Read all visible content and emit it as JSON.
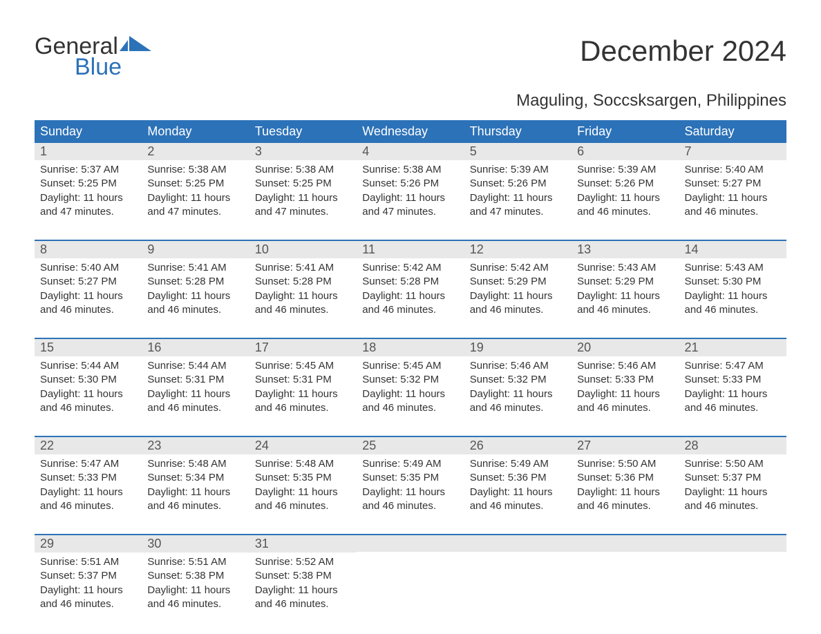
{
  "logo": {
    "text_top": "General",
    "text_bottom": "Blue",
    "icon_color": "#2c72b8"
  },
  "title": "December 2024",
  "subtitle": "Maguling, Soccsksargen, Philippines",
  "colors": {
    "header_bg": "#2c72b8",
    "header_text": "#ffffff",
    "daynum_bg": "#e8e8e8",
    "daynum_text": "#555555",
    "body_text": "#333333",
    "week_border": "#2c72b8",
    "page_bg": "#ffffff"
  },
  "typography": {
    "title_fontsize": 42,
    "subtitle_fontsize": 24,
    "dayheader_fontsize": 18,
    "daynum_fontsize": 18,
    "body_fontsize": 15,
    "font_family": "Arial"
  },
  "day_headers": [
    "Sunday",
    "Monday",
    "Tuesday",
    "Wednesday",
    "Thursday",
    "Friday",
    "Saturday"
  ],
  "weeks": [
    [
      {
        "n": "1",
        "sr": "Sunrise: 5:37 AM",
        "ss": "Sunset: 5:25 PM",
        "d1": "Daylight: 11 hours",
        "d2": "and 47 minutes."
      },
      {
        "n": "2",
        "sr": "Sunrise: 5:38 AM",
        "ss": "Sunset: 5:25 PM",
        "d1": "Daylight: 11 hours",
        "d2": "and 47 minutes."
      },
      {
        "n": "3",
        "sr": "Sunrise: 5:38 AM",
        "ss": "Sunset: 5:25 PM",
        "d1": "Daylight: 11 hours",
        "d2": "and 47 minutes."
      },
      {
        "n": "4",
        "sr": "Sunrise: 5:38 AM",
        "ss": "Sunset: 5:26 PM",
        "d1": "Daylight: 11 hours",
        "d2": "and 47 minutes."
      },
      {
        "n": "5",
        "sr": "Sunrise: 5:39 AM",
        "ss": "Sunset: 5:26 PM",
        "d1": "Daylight: 11 hours",
        "d2": "and 47 minutes."
      },
      {
        "n": "6",
        "sr": "Sunrise: 5:39 AM",
        "ss": "Sunset: 5:26 PM",
        "d1": "Daylight: 11 hours",
        "d2": "and 46 minutes."
      },
      {
        "n": "7",
        "sr": "Sunrise: 5:40 AM",
        "ss": "Sunset: 5:27 PM",
        "d1": "Daylight: 11 hours",
        "d2": "and 46 minutes."
      }
    ],
    [
      {
        "n": "8",
        "sr": "Sunrise: 5:40 AM",
        "ss": "Sunset: 5:27 PM",
        "d1": "Daylight: 11 hours",
        "d2": "and 46 minutes."
      },
      {
        "n": "9",
        "sr": "Sunrise: 5:41 AM",
        "ss": "Sunset: 5:28 PM",
        "d1": "Daylight: 11 hours",
        "d2": "and 46 minutes."
      },
      {
        "n": "10",
        "sr": "Sunrise: 5:41 AM",
        "ss": "Sunset: 5:28 PM",
        "d1": "Daylight: 11 hours",
        "d2": "and 46 minutes."
      },
      {
        "n": "11",
        "sr": "Sunrise: 5:42 AM",
        "ss": "Sunset: 5:28 PM",
        "d1": "Daylight: 11 hours",
        "d2": "and 46 minutes."
      },
      {
        "n": "12",
        "sr": "Sunrise: 5:42 AM",
        "ss": "Sunset: 5:29 PM",
        "d1": "Daylight: 11 hours",
        "d2": "and 46 minutes."
      },
      {
        "n": "13",
        "sr": "Sunrise: 5:43 AM",
        "ss": "Sunset: 5:29 PM",
        "d1": "Daylight: 11 hours",
        "d2": "and 46 minutes."
      },
      {
        "n": "14",
        "sr": "Sunrise: 5:43 AM",
        "ss": "Sunset: 5:30 PM",
        "d1": "Daylight: 11 hours",
        "d2": "and 46 minutes."
      }
    ],
    [
      {
        "n": "15",
        "sr": "Sunrise: 5:44 AM",
        "ss": "Sunset: 5:30 PM",
        "d1": "Daylight: 11 hours",
        "d2": "and 46 minutes."
      },
      {
        "n": "16",
        "sr": "Sunrise: 5:44 AM",
        "ss": "Sunset: 5:31 PM",
        "d1": "Daylight: 11 hours",
        "d2": "and 46 minutes."
      },
      {
        "n": "17",
        "sr": "Sunrise: 5:45 AM",
        "ss": "Sunset: 5:31 PM",
        "d1": "Daylight: 11 hours",
        "d2": "and 46 minutes."
      },
      {
        "n": "18",
        "sr": "Sunrise: 5:45 AM",
        "ss": "Sunset: 5:32 PM",
        "d1": "Daylight: 11 hours",
        "d2": "and 46 minutes."
      },
      {
        "n": "19",
        "sr": "Sunrise: 5:46 AM",
        "ss": "Sunset: 5:32 PM",
        "d1": "Daylight: 11 hours",
        "d2": "and 46 minutes."
      },
      {
        "n": "20",
        "sr": "Sunrise: 5:46 AM",
        "ss": "Sunset: 5:33 PM",
        "d1": "Daylight: 11 hours",
        "d2": "and 46 minutes."
      },
      {
        "n": "21",
        "sr": "Sunrise: 5:47 AM",
        "ss": "Sunset: 5:33 PM",
        "d1": "Daylight: 11 hours",
        "d2": "and 46 minutes."
      }
    ],
    [
      {
        "n": "22",
        "sr": "Sunrise: 5:47 AM",
        "ss": "Sunset: 5:33 PM",
        "d1": "Daylight: 11 hours",
        "d2": "and 46 minutes."
      },
      {
        "n": "23",
        "sr": "Sunrise: 5:48 AM",
        "ss": "Sunset: 5:34 PM",
        "d1": "Daylight: 11 hours",
        "d2": "and 46 minutes."
      },
      {
        "n": "24",
        "sr": "Sunrise: 5:48 AM",
        "ss": "Sunset: 5:35 PM",
        "d1": "Daylight: 11 hours",
        "d2": "and 46 minutes."
      },
      {
        "n": "25",
        "sr": "Sunrise: 5:49 AM",
        "ss": "Sunset: 5:35 PM",
        "d1": "Daylight: 11 hours",
        "d2": "and 46 minutes."
      },
      {
        "n": "26",
        "sr": "Sunrise: 5:49 AM",
        "ss": "Sunset: 5:36 PM",
        "d1": "Daylight: 11 hours",
        "d2": "and 46 minutes."
      },
      {
        "n": "27",
        "sr": "Sunrise: 5:50 AM",
        "ss": "Sunset: 5:36 PM",
        "d1": "Daylight: 11 hours",
        "d2": "and 46 minutes."
      },
      {
        "n": "28",
        "sr": "Sunrise: 5:50 AM",
        "ss": "Sunset: 5:37 PM",
        "d1": "Daylight: 11 hours",
        "d2": "and 46 minutes."
      }
    ],
    [
      {
        "n": "29",
        "sr": "Sunrise: 5:51 AM",
        "ss": "Sunset: 5:37 PM",
        "d1": "Daylight: 11 hours",
        "d2": "and 46 minutes."
      },
      {
        "n": "30",
        "sr": "Sunrise: 5:51 AM",
        "ss": "Sunset: 5:38 PM",
        "d1": "Daylight: 11 hours",
        "d2": "and 46 minutes."
      },
      {
        "n": "31",
        "sr": "Sunrise: 5:52 AM",
        "ss": "Sunset: 5:38 PM",
        "d1": "Daylight: 11 hours",
        "d2": "and 46 minutes."
      },
      {
        "empty": true
      },
      {
        "empty": true
      },
      {
        "empty": true
      },
      {
        "empty": true
      }
    ]
  ]
}
